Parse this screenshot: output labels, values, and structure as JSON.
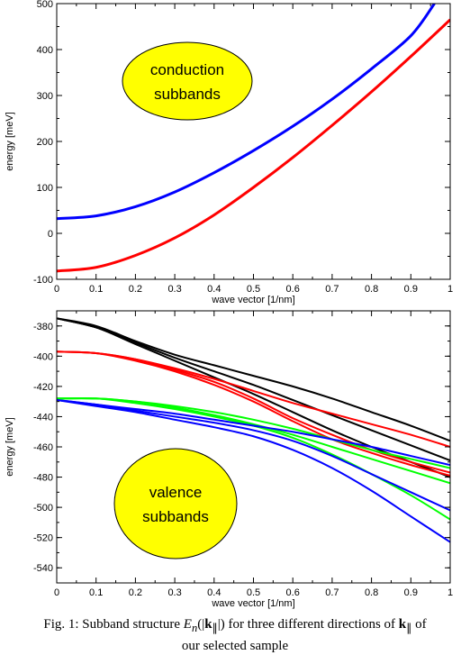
{
  "chart_data": [
    {
      "type": "line",
      "xlabel": "wave vector [1/nm]",
      "ylabel": "energy [meV]",
      "xlim": [
        0,
        1
      ],
      "ylim": [
        -100,
        500
      ],
      "x_ticks": [
        "0",
        "0.1",
        "0.2",
        "0.3",
        "0.4",
        "0.5",
        "0.6",
        "0.7",
        "0.8",
        "0.9",
        "1"
      ],
      "y_ticks": [
        "-100",
        "0",
        "100",
        "200",
        "300",
        "400",
        "500"
      ],
      "annotation": {
        "lines": [
          "conduction",
          "subbands"
        ],
        "fill": "#ffff00"
      },
      "grid": false,
      "series": [
        {
          "color": "#0000ff",
          "x": [
            0,
            0.1,
            0.2,
            0.3,
            0.4,
            0.5,
            0.6,
            0.7,
            0.8,
            0.9,
            0.96
          ],
          "values": [
            32,
            38,
            58,
            90,
            132,
            180,
            233,
            292,
            358,
            430,
            500
          ]
        },
        {
          "color": "#ff0000",
          "x": [
            0,
            0.1,
            0.2,
            0.3,
            0.4,
            0.5,
            0.6,
            0.7,
            0.8,
            0.9,
            1.0
          ],
          "values": [
            -82,
            -74,
            -48,
            -10,
            40,
            100,
            165,
            235,
            308,
            385,
            465
          ]
        }
      ]
    },
    {
      "type": "line",
      "xlabel": "wave vector [1/nm]",
      "ylabel": "energy [meV]",
      "xlim": [
        0,
        1
      ],
      "ylim": [
        -550,
        -370
      ],
      "x_ticks": [
        "0",
        "0.1",
        "0.2",
        "0.3",
        "0.4",
        "0.5",
        "0.6",
        "0.7",
        "0.8",
        "0.9",
        "1"
      ],
      "y_ticks": [
        "-380",
        "-400",
        "-420",
        "-440",
        "-460",
        "-480",
        "-500",
        "-520",
        "-540"
      ],
      "annotation": {
        "lines": [
          "valence",
          "subbands"
        ],
        "fill": "#ffff00"
      },
      "grid": false,
      "series": [
        {
          "color": "#000000",
          "x": [
            0,
            0.1,
            0.2,
            0.3,
            0.4,
            0.5,
            0.6,
            0.7,
            0.8,
            0.9,
            1.0
          ],
          "values": [
            -375,
            -380,
            -390,
            -399,
            -406,
            -413,
            -420,
            -428,
            -437,
            -446,
            -456
          ]
        },
        {
          "color": "#000000",
          "x": [
            0,
            0.1,
            0.2,
            0.3,
            0.4,
            0.5,
            0.6,
            0.7,
            0.8,
            0.9,
            1.0
          ],
          "values": [
            -375,
            -381,
            -391,
            -401,
            -410,
            -419,
            -429,
            -439,
            -449,
            -459,
            -469
          ]
        },
        {
          "color": "#000000",
          "x": [
            0,
            0.1,
            0.2,
            0.3,
            0.4,
            0.5,
            0.6,
            0.7,
            0.8,
            0.9,
            1.0
          ],
          "values": [
            -375,
            -381,
            -392,
            -403,
            -414,
            -425,
            -437,
            -449,
            -460,
            -470,
            -480
          ]
        },
        {
          "color": "#ff0000",
          "x": [
            0,
            0.1,
            0.2,
            0.3,
            0.4,
            0.5,
            0.6,
            0.7,
            0.8,
            0.9,
            1.0
          ],
          "values": [
            -397,
            -398,
            -402,
            -408,
            -415,
            -423,
            -431,
            -438,
            -445,
            -452,
            -460
          ]
        },
        {
          "color": "#ff0000",
          "x": [
            0,
            0.1,
            0.2,
            0.3,
            0.4,
            0.5,
            0.6,
            0.7,
            0.8,
            0.9,
            1.0
          ],
          "values": [
            -397,
            -398,
            -402,
            -409,
            -417,
            -428,
            -441,
            -452,
            -462,
            -470,
            -477
          ]
        },
        {
          "color": "#ff0000",
          "x": [
            0,
            0.1,
            0.2,
            0.3,
            0.4,
            0.5,
            0.6,
            0.7,
            0.8,
            0.9,
            1.0
          ],
          "values": [
            -397,
            -398,
            -403,
            -410,
            -419,
            -430,
            -443,
            -455,
            -464,
            -472,
            -479
          ]
        },
        {
          "color": "#00ff00",
          "x": [
            0,
            0.1,
            0.2,
            0.3,
            0.4,
            0.5,
            0.6,
            0.7,
            0.8,
            0.9,
            1.0
          ],
          "values": [
            -428,
            -428,
            -430,
            -433,
            -437,
            -442,
            -448,
            -455,
            -462,
            -468,
            -474
          ]
        },
        {
          "color": "#00ff00",
          "x": [
            0,
            0.1,
            0.2,
            0.3,
            0.4,
            0.5,
            0.6,
            0.7,
            0.8,
            0.9,
            1.0
          ],
          "values": [
            -428,
            -428,
            -430,
            -434,
            -439,
            -445,
            -452,
            -460,
            -468,
            -476,
            -484
          ]
        },
        {
          "color": "#00ff00",
          "x": [
            0,
            0.1,
            0.2,
            0.3,
            0.4,
            0.5,
            0.6,
            0.7,
            0.8,
            0.9,
            1.0
          ],
          "values": [
            -428,
            -428,
            -431,
            -435,
            -440,
            -446,
            -454,
            -465,
            -478,
            -492,
            -508
          ]
        },
        {
          "color": "#0000ff",
          "x": [
            0,
            0.1,
            0.2,
            0.3,
            0.4,
            0.5,
            0.6,
            0.7,
            0.8,
            0.9,
            1.0
          ],
          "values": [
            -429,
            -432,
            -435,
            -438,
            -442,
            -446,
            -450,
            -455,
            -460,
            -466,
            -472
          ]
        },
        {
          "color": "#0000ff",
          "x": [
            0,
            0.1,
            0.2,
            0.3,
            0.4,
            0.5,
            0.6,
            0.7,
            0.8,
            0.9,
            1.0
          ],
          "values": [
            -429,
            -432,
            -436,
            -440,
            -444,
            -449,
            -456,
            -466,
            -478,
            -490,
            -502
          ]
        },
        {
          "color": "#0000ff",
          "x": [
            0,
            0.1,
            0.2,
            0.3,
            0.4,
            0.5,
            0.6,
            0.7,
            0.8,
            0.9,
            1.0
          ],
          "values": [
            -429,
            -433,
            -437,
            -442,
            -447,
            -453,
            -462,
            -474,
            -489,
            -506,
            -523
          ]
        }
      ]
    }
  ],
  "caption": {
    "prefix": "Fig. 1: Subband structure ",
    "mid": " for three different directions of ",
    "suffix": " of",
    "line2": "our selected sample"
  }
}
